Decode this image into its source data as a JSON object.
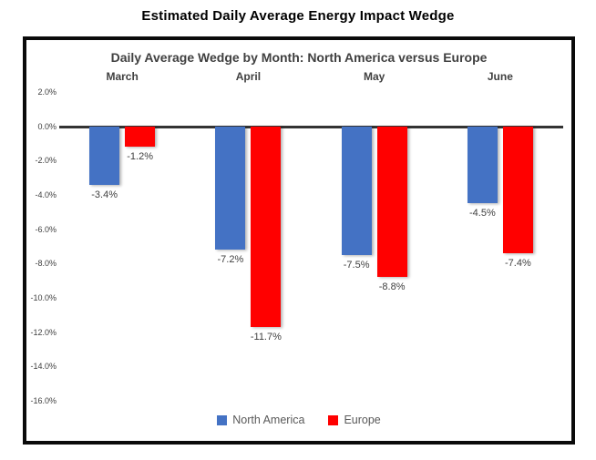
{
  "page_title": "Estimated Daily Average Energy Impact Wedge",
  "chart_data": {
    "type": "bar",
    "title": "Daily Average Wedge by Month: North America versus Europe",
    "categories": [
      "March",
      "April",
      "May",
      "June"
    ],
    "series": [
      {
        "name": "North America",
        "color": "#4472C4",
        "values": [
          -3.4,
          -7.2,
          -7.5,
          -4.5
        ],
        "labels": [
          "-3.4%",
          "-7.2%",
          "-7.5%",
          "-4.5%"
        ]
      },
      {
        "name": "Europe",
        "color": "#FF0000",
        "values": [
          -1.2,
          -11.7,
          -8.8,
          -7.4
        ],
        "labels": [
          "-1.2%",
          "-11.7%",
          "-8.8%",
          "-7.4%"
        ]
      }
    ],
    "y_ticks": [
      "2.0%",
      "0.0%",
      "-2.0%",
      "-4.0%",
      "-6.0%",
      "-8.0%",
      "-10.0%",
      "-12.0%",
      "-14.0%",
      "-16.0%"
    ],
    "ylim": [
      -16.0,
      2.0
    ],
    "value_suffix": "%",
    "grid": false,
    "legend_position": "bottom",
    "axis_line_color": "#333333",
    "colors": {
      "north_america": "#4472C4",
      "europe": "#FF0000",
      "text": "#404040",
      "legend_text": "#595959"
    }
  }
}
